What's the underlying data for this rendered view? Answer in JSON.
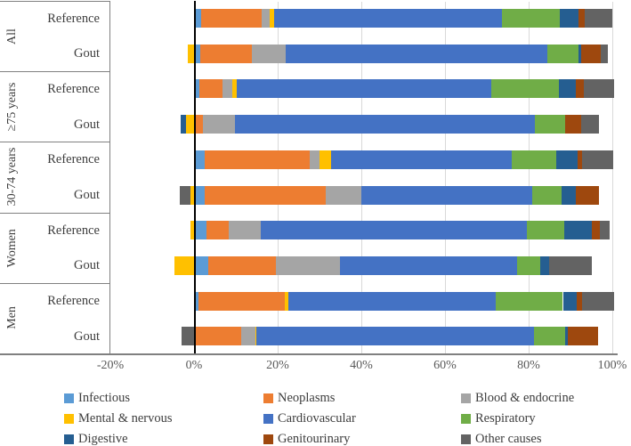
{
  "figure_name": "Distribution of causes of death, gout vs reference, stacked bar chart",
  "chart_data": {
    "type": "bar",
    "orientation": "horizontal-stacked",
    "title": "",
    "xlabel": "",
    "ylabel": "",
    "xlim": [
      -20,
      100
    ],
    "x_ticks": [
      "-20%",
      "0%",
      "20%",
      "40%",
      "60%",
      "80%",
      "100%"
    ],
    "x_tick_values": [
      -20,
      0,
      20,
      40,
      60,
      80,
      100
    ],
    "grid": "vertical-light-gray",
    "legend_position": "bottom",
    "categories": [
      "Infectious",
      "Neoplasms",
      "Blood & endocrine",
      "Mental & nervous",
      "Cardiovascular",
      "Respiratory",
      "Digestive",
      "Genitourinary",
      "Other causes"
    ],
    "category_colors": [
      "#5B9BD5",
      "#ED7D31",
      "#A5A5A5",
      "#FFC000",
      "#4472C4",
      "#70AD47",
      "#255E91",
      "#9E480E",
      "#636363"
    ],
    "groups": [
      "All",
      "≥75 years",
      "30-74 years",
      "Women",
      "Men"
    ],
    "rows": [
      {
        "group": "All",
        "label": "Reference",
        "values": [
          1.7,
          14.5,
          1.9,
          1.1,
          54.4,
          13.8,
          4.5,
          1.5,
          6.6
        ]
      },
      {
        "group": "All",
        "label": "Gout",
        "values": [
          1.5,
          12.3,
          8.1,
          -1.5,
          62.6,
          7.4,
          0.6,
          4.7,
          1.7
        ]
      },
      {
        "group": "≥75 years",
        "label": "Reference",
        "values": [
          1.3,
          5.5,
          2.3,
          1.1,
          60.9,
          16.2,
          4.0,
          1.9,
          7.2
        ]
      },
      {
        "group": "≥75 years",
        "label": "Gout",
        "values": [
          0.0,
          2.1,
          7.7,
          -1.9,
          71.7,
          7.2,
          -1.3,
          3.8,
          4.3
        ]
      },
      {
        "group": "30-74 years",
        "label": "Reference",
        "values": [
          2.6,
          25.1,
          2.3,
          2.8,
          43.2,
          10.6,
          5.1,
          1.1,
          7.4
        ]
      },
      {
        "group": "30-74 years",
        "label": "Gout",
        "values": [
          2.6,
          28.9,
          8.5,
          -0.9,
          40.9,
          7.0,
          3.4,
          5.5,
          -2.6
        ]
      },
      {
        "group": "Women",
        "label": "Reference",
        "values": [
          3.0,
          5.3,
          7.7,
          -0.9,
          63.6,
          8.9,
          6.6,
          1.9,
          2.3
        ]
      },
      {
        "group": "Women",
        "label": "Gout",
        "values": [
          3.4,
          16.2,
          15.3,
          -4.7,
          42.3,
          5.5,
          2.1,
          0.0,
          10.4
        ]
      },
      {
        "group": "Men",
        "label": "Reference",
        "values": [
          1.1,
          20.6,
          0.0,
          0.9,
          49.6,
          16.0,
          3.2,
          1.3,
          7.7
        ]
      },
      {
        "group": "Men",
        "label": "Gout",
        "values": [
          0.0,
          11.3,
          3.4,
          0.2,
          66.4,
          7.4,
          0.6,
          7.4,
          -3.0
        ]
      }
    ],
    "legend_rows": [
      [
        "Infectious",
        "Neoplasms",
        "Blood & endocrine"
      ],
      [
        "Mental & nervous",
        "Cardiovascular",
        "Respiratory"
      ],
      [
        "Digestive",
        "Genitourinary",
        "Other causes"
      ]
    ]
  },
  "styles": {
    "gridline_color": "#D9D9D9",
    "zero_line_color": "#000000",
    "frame_line_color": "#808080",
    "label_text_color": "#3d3d3d",
    "tick_text_color": "#595959",
    "background": "#FFFFFF"
  }
}
